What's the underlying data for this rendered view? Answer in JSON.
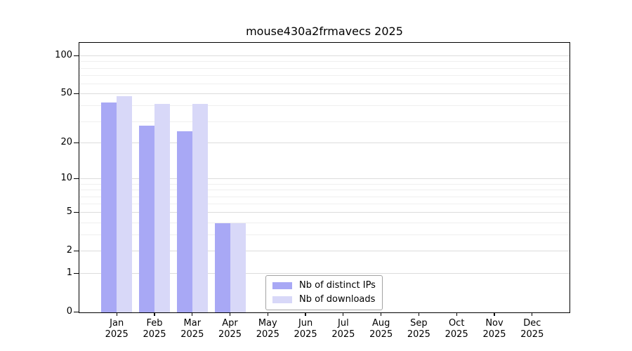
{
  "title": "mouse430a2frmavecs 2025",
  "chart_data": {
    "type": "bar",
    "categories": [
      "Jan 2025",
      "Feb 2025",
      "Mar 2025",
      "Apr 2025",
      "May 2025",
      "Jun 2025",
      "Jul 2025",
      "Aug 2025",
      "Sep 2025",
      "Oct 2025",
      "Nov 2025",
      "Dec 2025"
    ],
    "series": [
      {
        "name": "Nb of distinct IPs",
        "color": "#a8a8f5",
        "values": [
          43,
          28,
          25,
          4,
          0,
          0,
          0,
          0,
          0,
          0,
          0,
          0
        ]
      },
      {
        "name": "Nb of downloads",
        "color": "#d8d8f8",
        "values": [
          48,
          42,
          42,
          4,
          0,
          0,
          0,
          0,
          0,
          0,
          0,
          0
        ]
      }
    ],
    "title": "mouse430a2frmavecs 2025",
    "xlabel": "",
    "ylabel": "",
    "yscale": "log1p",
    "ylim": [
      0,
      126
    ],
    "yticks": [
      0,
      1,
      2,
      5,
      10,
      20,
      50,
      100
    ],
    "minor_gridlines": [
      3,
      4,
      6,
      7,
      8,
      9,
      30,
      40,
      60,
      70,
      80,
      90
    ],
    "grid": "horizontal",
    "legend_position": "lower-center",
    "legend_entries": [
      "Nb of distinct IPs",
      "Nb of downloads"
    ]
  }
}
